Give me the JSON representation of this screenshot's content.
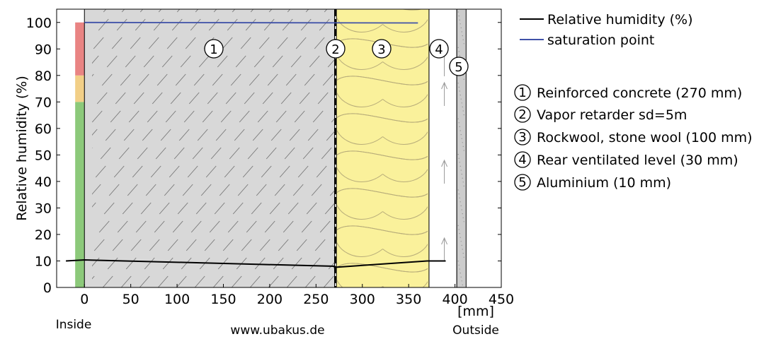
{
  "chart_data": {
    "type": "line",
    "ylabel": "Relative humidity (%)",
    "xunit": "[mm]",
    "inside_label": "Inside",
    "outside_label": "Outside",
    "watermark": "www.ubakus.de",
    "xlim": [
      -30,
      450
    ],
    "ylim": [
      0,
      105
    ],
    "xticks": [
      0,
      50,
      100,
      150,
      200,
      250,
      300,
      350,
      400,
      450
    ],
    "yticks": [
      0,
      10,
      20,
      30,
      40,
      50,
      60,
      70,
      80,
      90,
      100
    ],
    "humidity_bands": [
      {
        "from": 0,
        "to": 70,
        "color": "#8cc97a"
      },
      {
        "from": 70,
        "to": 80,
        "color": "#f2cf87"
      },
      {
        "from": 80,
        "to": 100,
        "color": "#e98483"
      }
    ],
    "series": [
      {
        "name": "Relative humidity (%)",
        "color": "#000000",
        "x": [
          -20,
          0,
          270,
          270,
          370,
          390
        ],
        "y": [
          10,
          10.4,
          8,
          7.6,
          10,
          10
        ]
      },
      {
        "name": "saturation point",
        "color": "#3f51a8",
        "x": [
          0,
          360
        ],
        "y": [
          100,
          99.8
        ]
      }
    ],
    "layers": [
      {
        "id": "1",
        "name": "Reinforced concrete (270 mm)",
        "from": 0,
        "to": 270,
        "fill": "#d8d8d8",
        "pattern": "concrete"
      },
      {
        "id": "2",
        "name": "Vapor retarder sd=5m",
        "from": 270,
        "to": 272,
        "fill": "#000000",
        "pattern": "membrane"
      },
      {
        "id": "3",
        "name": "Rockwool, stone wool (100 mm)",
        "from": 272,
        "to": 372,
        "fill": "#faf19b",
        "pattern": "insulation"
      },
      {
        "id": "4",
        "name": "Rear ventilated level (30 mm)",
        "from": 372,
        "to": 402,
        "fill": "#ffffff",
        "pattern": "air"
      },
      {
        "id": "5",
        "name": "Aluminium (10 mm)",
        "from": 402,
        "to": 412,
        "fill": "#cccccc",
        "pattern": "metal"
      }
    ]
  }
}
